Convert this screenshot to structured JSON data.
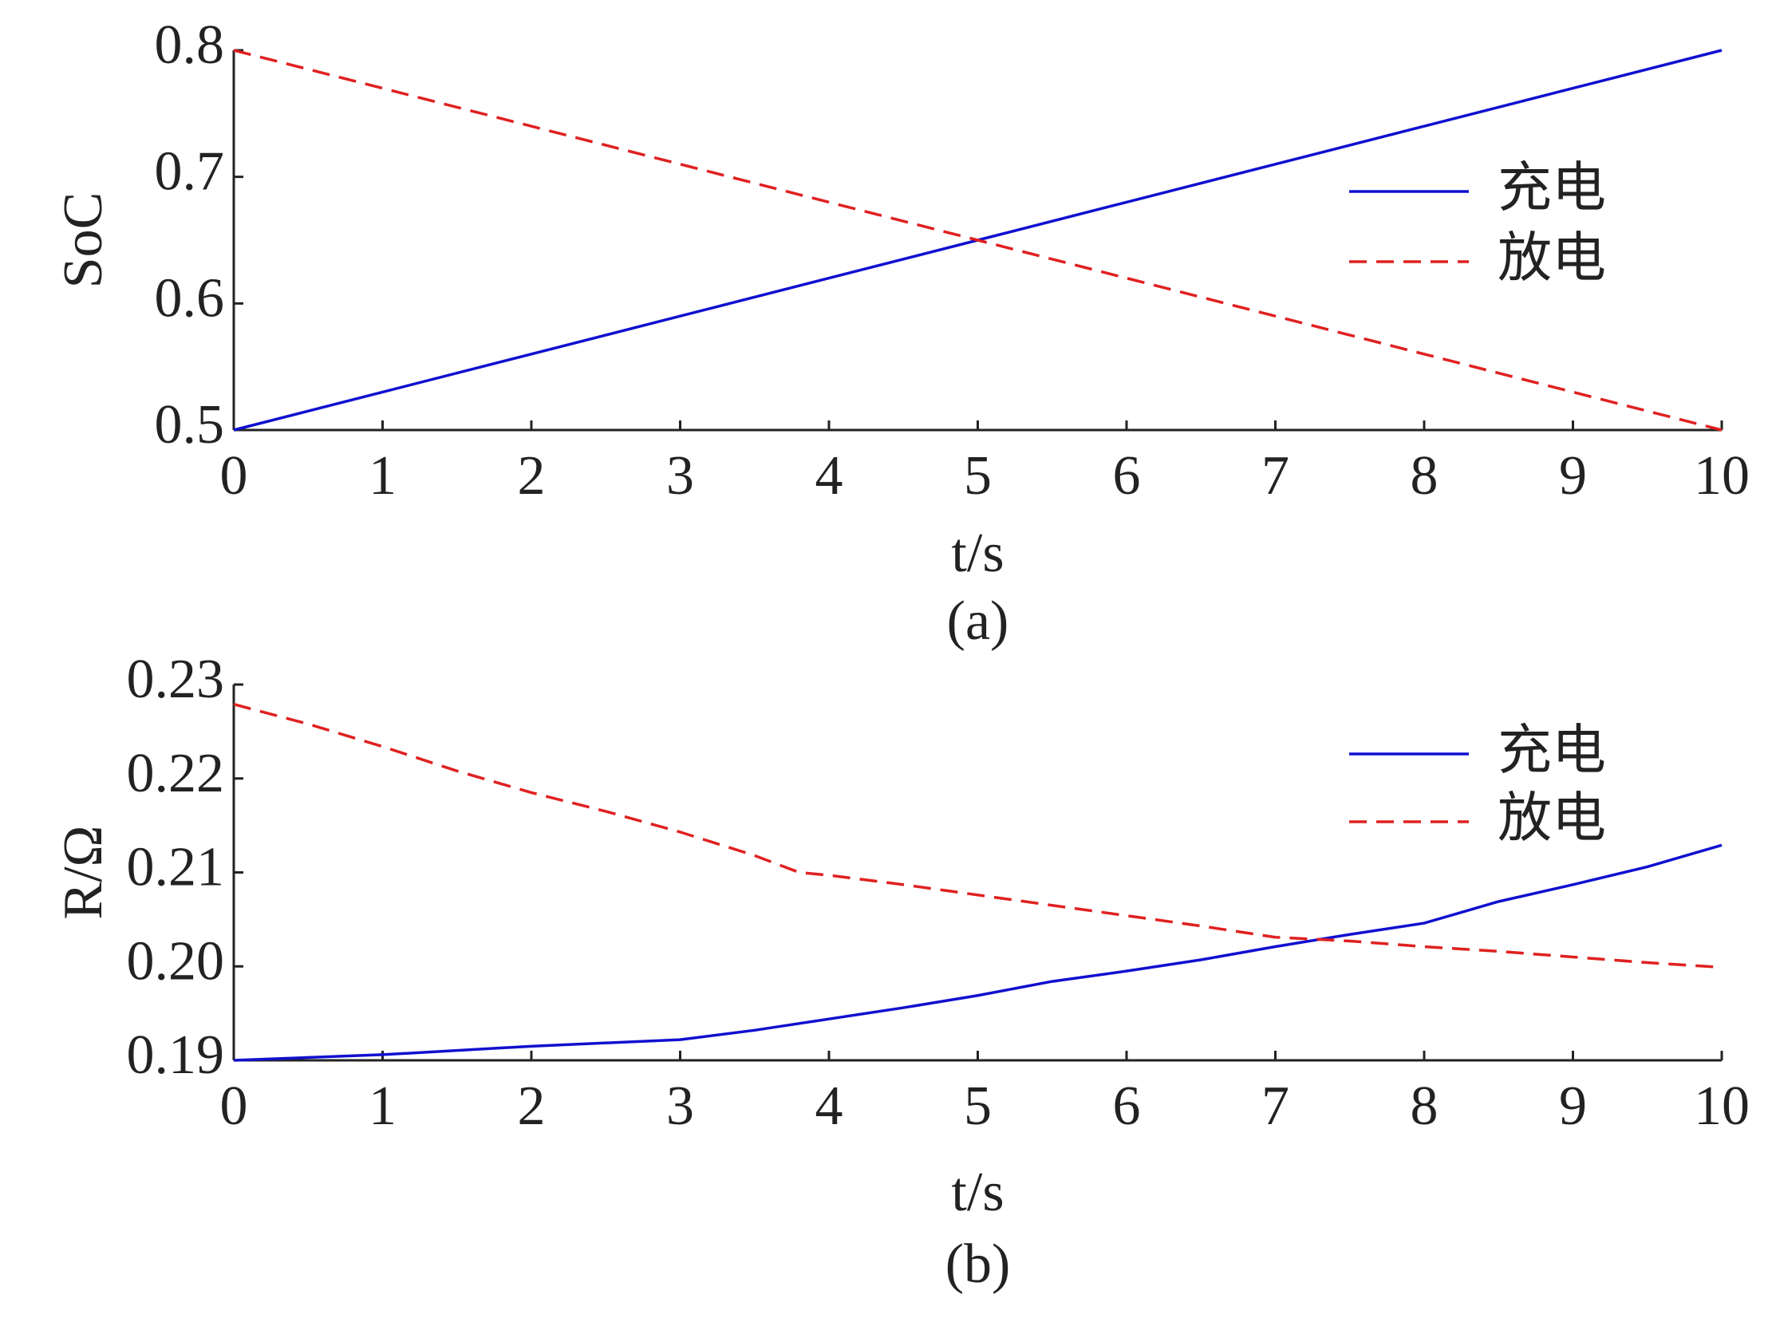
{
  "chart_data": [
    {
      "type": "line",
      "y_label": "SoC",
      "x_label": "t/s",
      "caption": "(a)",
      "xlim": [
        0,
        10
      ],
      "xticks": [
        0,
        1,
        2,
        3,
        4,
        5,
        6,
        7,
        8,
        9,
        10
      ],
      "ylim": [
        0.5,
        0.8
      ],
      "yticks": [
        0.5,
        0.6,
        0.7,
        0.8
      ],
      "legend": "upper right",
      "series": [
        {
          "name": "充电",
          "color": "#1010d0",
          "linestyle": "solid",
          "x": [
            0,
            1,
            2,
            3,
            4,
            5,
            6,
            7,
            8,
            9,
            10
          ],
          "values": [
            0.5,
            0.53,
            0.56,
            0.59,
            0.62,
            0.65,
            0.68,
            0.71,
            0.74,
            0.77,
            0.8
          ]
        },
        {
          "name": "放电",
          "color": "#e02020",
          "linestyle": "dashed",
          "x": [
            0,
            1,
            2,
            3,
            4,
            5,
            6,
            7,
            8,
            9,
            10
          ],
          "values": [
            0.8,
            0.77,
            0.74,
            0.71,
            0.68,
            0.65,
            0.62,
            0.59,
            0.56,
            0.53,
            0.5
          ]
        }
      ]
    },
    {
      "type": "line",
      "y_label": "R/Ω",
      "x_label": "t/s",
      "caption": "(b)",
      "xlim": [
        0,
        10
      ],
      "xticks": [
        0,
        1,
        2,
        3,
        4,
        5,
        6,
        7,
        8,
        9,
        10
      ],
      "ylim": [
        0.19,
        0.23
      ],
      "yticks": [
        0.19,
        {
          "value": 0.2,
          "label": "0.20"
        },
        0.21,
        0.22,
        0.23
      ],
      "legend": "upper right",
      "series": [
        {
          "name": "充电",
          "color": "#1010d0",
          "linestyle": "solid",
          "x": [
            0,
            1,
            2,
            3,
            3.5,
            4,
            4.5,
            5,
            5.5,
            6,
            6.5,
            7,
            7.5,
            8,
            8.5,
            9,
            9.5,
            10
          ],
          "values": [
            0.19,
            0.1906,
            0.1915,
            0.1922,
            0.1932,
            0.1944,
            0.1956,
            0.1969,
            0.1984,
            0.1995,
            0.2007,
            0.2021,
            0.2034,
            0.2046,
            0.2069,
            0.2087,
            0.2106,
            0.2129
          ]
        },
        {
          "name": "放电",
          "color": "#e02020",
          "linestyle": "dashed",
          "x": [
            0,
            0.5,
            1,
            1.5,
            2,
            2.5,
            3,
            3.5,
            3.8,
            4,
            4.5,
            5,
            5.5,
            6,
            6.5,
            7,
            7.5,
            8,
            8.5,
            9,
            9.5,
            10
          ],
          "values": [
            0.2279,
            0.2258,
            0.2234,
            0.2208,
            0.2185,
            0.2165,
            0.2143,
            0.2118,
            0.21,
            0.2097,
            0.2087,
            0.2076,
            0.2065,
            0.2054,
            0.2043,
            0.2031,
            0.2027,
            0.2021,
            0.2016,
            0.201,
            0.2004,
            0.1999
          ]
        }
      ]
    }
  ]
}
